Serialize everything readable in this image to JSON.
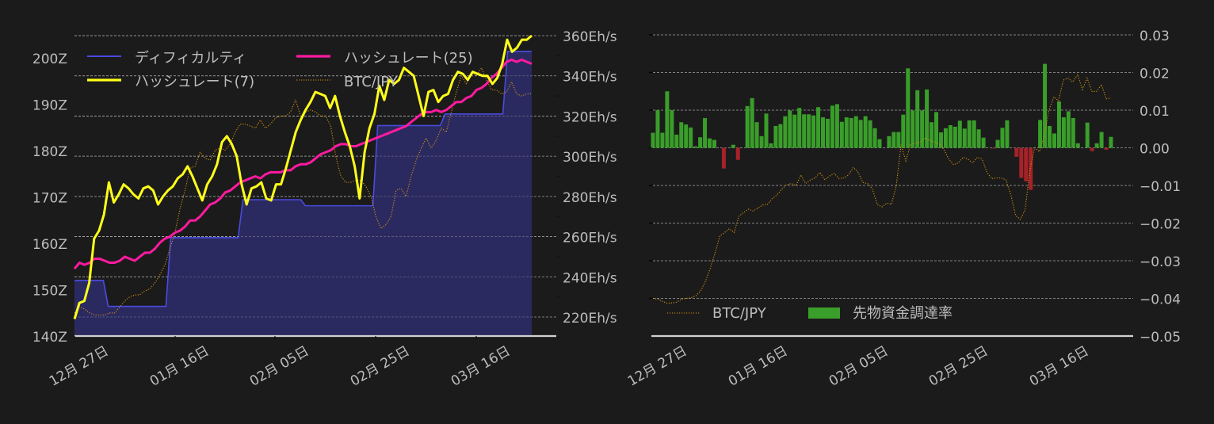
{
  "theme": {
    "background": "#1b1b1b",
    "grid": "#cfcfcf",
    "text": "#bdbdbd",
    "axis": "#d0d0d0"
  },
  "chart_data": [
    {
      "type": "line",
      "title": "",
      "xlabel": "",
      "x_ticks": [
        "12月 27日",
        "01月 16日",
        "02月 05日",
        "02月 25日",
        "03月 16日"
      ],
      "y_left": {
        "label": "",
        "ticks": [
          "140Z",
          "150Z",
          "160Z",
          "170Z",
          "180Z",
          "190Z",
          "200Z"
        ],
        "range": [
          140,
          204
        ]
      },
      "y_right": {
        "label": "",
        "ticks": [
          "220Eh/s",
          "240Eh/s",
          "260Eh/s",
          "280Eh/s",
          "300Eh/s",
          "320Eh/s",
          "340Eh/s",
          "360Eh/s"
        ],
        "range": [
          210,
          360
        ]
      },
      "grid": true,
      "legend_position": "upper-left",
      "legend": [
        {
          "name": "ディフィカルティ",
          "color": "#4a4ae0",
          "style": "line"
        },
        {
          "name": "ハッシュレート(25)",
          "color": "#ff1aa0",
          "style": "line"
        },
        {
          "name": "ハッシュレート(7)",
          "color": "#ffff1a",
          "style": "line"
        },
        {
          "name": "BTC/JPY",
          "color": "#d4920f",
          "style": "dotted"
        }
      ],
      "series": [
        {
          "name": "ディフィカルティ",
          "axis": "left",
          "color": "#4a4ae0",
          "fill": "#2b2a60",
          "step_points": [
            [
              0,
              152
            ],
            [
              6,
              152
            ],
            [
              7,
              146.4
            ],
            [
              19,
              146.4
            ],
            [
              20,
              161.2
            ],
            [
              34,
              161.2
            ],
            [
              35,
              169.4
            ],
            [
              47,
              169.4
            ],
            [
              48,
              168.1
            ],
            [
              62,
              168.1
            ],
            [
              63,
              185.4
            ],
            [
              76,
              185.4
            ],
            [
              77,
              187.9
            ],
            [
              89,
              187.9
            ],
            [
              90,
              201.4
            ],
            [
              95,
              201.4
            ]
          ]
        },
        {
          "name": "ハッシュレート(7)",
          "axis": "right",
          "color": "#ffff1a",
          "values": [
            219,
            227,
            228,
            237,
            259,
            263,
            271,
            287,
            277,
            281,
            286,
            284,
            281,
            279,
            284,
            285,
            283,
            276,
            280,
            283,
            285,
            289,
            291,
            295,
            290,
            284,
            278,
            286,
            290,
            296,
            307,
            310,
            306,
            300,
            286,
            276,
            284,
            285,
            287,
            279,
            278,
            286,
            286,
            294,
            303,
            312,
            318,
            323,
            327,
            332,
            331,
            330,
            324,
            330,
            320,
            312,
            305,
            295,
            279,
            302,
            314,
            321,
            335,
            328,
            338,
            336,
            338,
            344,
            342,
            340,
            330,
            320,
            332,
            333,
            327,
            330,
            331,
            338,
            342,
            341,
            338,
            342,
            341,
            340,
            340,
            336,
            339,
            346,
            358,
            352,
            354,
            358,
            358,
            360
          ]
        },
        {
          "name": "ハッシュレート(25)",
          "axis": "right",
          "color": "#ff1aa0",
          "values": [
            244,
            247,
            246,
            247,
            249,
            249,
            248,
            247,
            247,
            248,
            250,
            249,
            248,
            250,
            252,
            252,
            254,
            257,
            259,
            260,
            262,
            263,
            265,
            268,
            268,
            270,
            273,
            276,
            277,
            279,
            282,
            283,
            285,
            287,
            288,
            289,
            290,
            289,
            291,
            292,
            292,
            292,
            293,
            293,
            295,
            296,
            296,
            297,
            299,
            301,
            302,
            303,
            305,
            306,
            306,
            305,
            305,
            306,
            307,
            308,
            309,
            310,
            311,
            312,
            313,
            314,
            315,
            317,
            319,
            321,
            322,
            322,
            323,
            322,
            323,
            325,
            327,
            327,
            329,
            330,
            333,
            334,
            336,
            339,
            341,
            344,
            347,
            348,
            347,
            348,
            347,
            346
          ]
        },
        {
          "name": "BTC/JPY",
          "axis": "right",
          "color": "#d4920f",
          "style": "dotted",
          "values": [
            222,
            225,
            224,
            222,
            221,
            221,
            221,
            222,
            222,
            225,
            228,
            230,
            231,
            231,
            233,
            234,
            237,
            241,
            246,
            254,
            262,
            274,
            283,
            294,
            295,
            302,
            299,
            298,
            303,
            304,
            303,
            306,
            312,
            316,
            316,
            315,
            314,
            318,
            314,
            316,
            319,
            320,
            320,
            322,
            328,
            320,
            322,
            323,
            322,
            320,
            320,
            315,
            300,
            290,
            287,
            287,
            288,
            288,
            285,
            280,
            270,
            264,
            266,
            270,
            283,
            284,
            280,
            290,
            298,
            304,
            309,
            304,
            308,
            314,
            312,
            322,
            332,
            340,
            336,
            342,
            340,
            344,
            338,
            333,
            333,
            331,
            332,
            337,
            331,
            330,
            331,
            331
          ]
        }
      ]
    },
    {
      "type": "bar",
      "title": "",
      "xlabel": "",
      "x_ticks": [
        "12月 27日",
        "01月 16日",
        "02月 05日",
        "02月 25日",
        "03月 16日"
      ],
      "y_right": {
        "label": "",
        "ticks": [
          "−0.05",
          "−0.04",
          "−0.03",
          "−0.02",
          "−0.01",
          "0.00",
          "0.01",
          "0.02",
          "0.03"
        ],
        "range": [
          -0.05,
          0.03
        ]
      },
      "grid": true,
      "legend_position": "lower-left",
      "legend": [
        {
          "name": "BTC/JPY",
          "color": "#d4920f",
          "style": "dotted"
        },
        {
          "name": "先物資金調達率",
          "color": "#3a9e2a",
          "style": "patch"
        }
      ],
      "bar_colors": {
        "positive": "#3a9e2a",
        "negative": "#a52228"
      },
      "series": [
        {
          "name": "先物資金調達率",
          "type": "bar",
          "values": [
            0.004,
            0.01,
            0.004,
            0.015,
            0.01,
            0.0035,
            0.0068,
            0.0062,
            0.0054,
            0.0004,
            0.0028,
            0.0079,
            0.0025,
            0.0021,
            0,
            -0.0055,
            0,
            0.0008,
            -0.0032,
            0,
            0.0111,
            0.0132,
            0.0068,
            0.0031,
            0.0091,
            0.0012,
            0.0058,
            0.0063,
            0.0084,
            0.0099,
            0.0088,
            0.0106,
            0.0089,
            0.0089,
            0.0086,
            0.0108,
            0.0081,
            0.0077,
            0.0112,
            0.0116,
            0.0069,
            0.0081,
            0.0079,
            0.0084,
            0.0074,
            0.0084,
            0.0073,
            0.0052,
            0.0023,
            0,
            0.0031,
            0.0042,
            0.0042,
            0.0088,
            0.0211,
            0.0099,
            0.0153,
            0.0099,
            0.0155,
            0.0068,
            0.0095,
            0.0041,
            0.0052,
            0.006,
            0.0056,
            0.0072,
            0.0051,
            0.0073,
            0.0073,
            0.0049,
            0.0027,
            0,
            -0.0002,
            0.0021,
            0.0053,
            0.0073,
            0,
            -0.0024,
            -0.008,
            -0.0089,
            -0.0112,
            0,
            0.0074,
            0.0223,
            0.0058,
            0.0038,
            0.0123,
            0.0081,
            0.0097,
            0.0079,
            0.0012,
            0,
            0.0067,
            -0.0009,
            0.0012,
            0.0042,
            -0.0005,
            0.0029
          ]
        },
        {
          "name": "BTC/JPY",
          "type": "line",
          "style": "dotted",
          "values": [
            -0.04,
            -0.0402,
            -0.0408,
            -0.0413,
            -0.0412,
            -0.041,
            -0.0402,
            -0.04,
            -0.0398,
            -0.0393,
            -0.038,
            -0.0355,
            -0.032,
            -0.028,
            -0.0235,
            -0.0225,
            -0.0215,
            -0.0225,
            -0.0182,
            -0.0172,
            -0.0163,
            -0.0168,
            -0.016,
            -0.0152,
            -0.015,
            -0.0135,
            -0.0125,
            -0.011,
            -0.0098,
            -0.0095,
            -0.01,
            -0.0072,
            -0.0095,
            -0.0085,
            -0.008,
            -0.0065,
            -0.0085,
            -0.0075,
            -0.0068,
            -0.0082,
            -0.008,
            -0.0072,
            -0.0052,
            -0.0065,
            -0.0092,
            -0.0095,
            -0.011,
            -0.015,
            -0.0157,
            -0.0147,
            -0.015,
            -0.01,
            0.0008,
            -0.0035,
            0.001,
            0.0012,
            0.0015,
            0.0025,
            0.002,
            0.0015,
            0.001,
            -0.0005,
            -0.003,
            -0.0045,
            -0.004,
            -0.0025,
            -0.003,
            -0.004,
            -0.0025,
            -0.003,
            -0.0065,
            -0.0082,
            -0.008,
            -0.008,
            -0.0085,
            -0.0125,
            -0.018,
            -0.019,
            -0.0165,
            -0.006,
            0.0,
            -0.001,
            0.003,
            0.01,
            0.0135,
            0.0125,
            0.018,
            0.0185,
            0.0175,
            0.0195,
            0.0155,
            0.0185,
            0.015,
            0.015,
            0.0168,
            0.013,
            0.0132
          ]
        }
      ]
    }
  ]
}
